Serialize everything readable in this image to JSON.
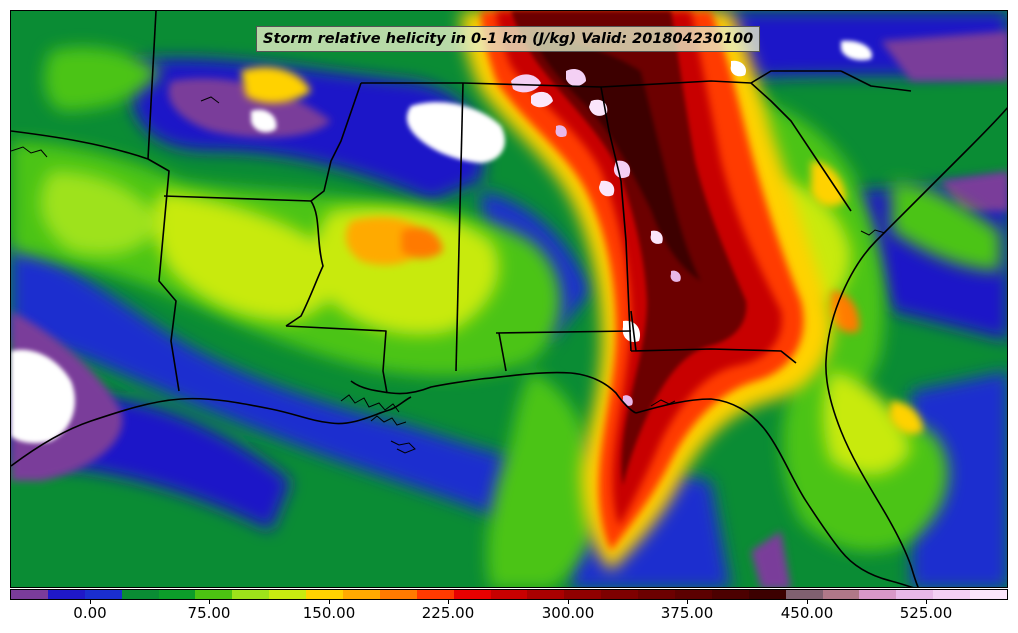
{
  "title": "Storm relative helicity in 0-1 km (J/kg) Valid: 201804230100",
  "colorbar": {
    "labels": [
      "0.00",
      "75.00",
      "150.00",
      "225.00",
      "300.00",
      "375.00",
      "450.00",
      "525.00"
    ],
    "colors": [
      "#7a3c9a",
      "#1f18c8",
      "#1a2ecf",
      "#0a8c34",
      "#0c9e2a",
      "#4cc412",
      "#9ee21a",
      "#c8ea10",
      "#ffd200",
      "#ffaa00",
      "#ff7a00",
      "#ff3a00",
      "#e80000",
      "#c80000",
      "#aa0000",
      "#900000",
      "#7e0000",
      "#6c0000",
      "#5c0000",
      "#4c0000",
      "#3c0000",
      "#806070",
      "#b07888",
      "#d898c8",
      "#e8b8e8",
      "#f4d0f4",
      "#fbe6fb"
    ]
  },
  "map_features": [
    "state-borders",
    "coastlines",
    "gulf-of-mexico",
    "storm-relative-helicity-field"
  ]
}
